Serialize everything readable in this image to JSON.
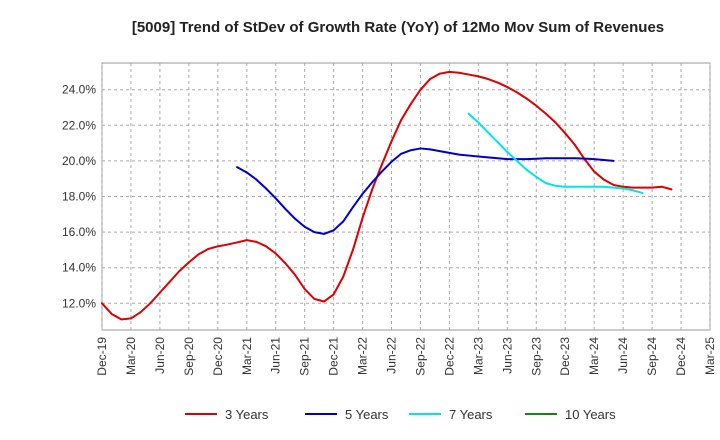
{
  "chart_data": {
    "type": "line",
    "title": "[5009]  Trend of StDev of Growth Rate (YoY) of 12Mo Mov Sum of Revenues",
    "xlabel": "",
    "ylabel": "",
    "ylim": [
      10.5,
      25.5
    ],
    "y_ticks": [
      {
        "value": 12,
        "label": "12.0%"
      },
      {
        "value": 14,
        "label": "14.0%"
      },
      {
        "value": 16,
        "label": "16.0%"
      },
      {
        "value": 18,
        "label": "18.0%"
      },
      {
        "value": 20,
        "label": "20.0%"
      },
      {
        "value": 22,
        "label": "22.0%"
      },
      {
        "value": 24,
        "label": "24.0%"
      }
    ],
    "x_ticks": [
      {
        "index": 0,
        "label": "Dec-19"
      },
      {
        "index": 3,
        "label": "Mar-20"
      },
      {
        "index": 6,
        "label": "Jun-20"
      },
      {
        "index": 9,
        "label": "Sep-20"
      },
      {
        "index": 12,
        "label": "Dec-20"
      },
      {
        "index": 15,
        "label": "Mar-21"
      },
      {
        "index": 18,
        "label": "Jun-21"
      },
      {
        "index": 21,
        "label": "Sep-21"
      },
      {
        "index": 24,
        "label": "Dec-21"
      },
      {
        "index": 27,
        "label": "Mar-22"
      },
      {
        "index": 30,
        "label": "Jun-22"
      },
      {
        "index": 33,
        "label": "Sep-22"
      },
      {
        "index": 36,
        "label": "Dec-22"
      },
      {
        "index": 39,
        "label": "Mar-23"
      },
      {
        "index": 42,
        "label": "Jun-23"
      },
      {
        "index": 45,
        "label": "Sep-23"
      },
      {
        "index": 48,
        "label": "Dec-23"
      },
      {
        "index": 51,
        "label": "Mar-24"
      },
      {
        "index": 54,
        "label": "Jun-24"
      },
      {
        "index": 57,
        "label": "Sep-24"
      },
      {
        "index": 60,
        "label": "Dec-24"
      },
      {
        "index": 63,
        "label": "Mar-25"
      }
    ],
    "x_range": [
      0,
      63
    ],
    "grid": true,
    "legend_position": "bottom",
    "series": [
      {
        "name": "3 Years",
        "color": "#dd0000",
        "start_index": 0,
        "values": [
          12.0,
          11.4,
          11.1,
          11.15,
          11.5,
          12.0,
          12.6,
          13.2,
          13.8,
          14.3,
          14.75,
          15.05,
          15.2,
          15.3,
          15.42,
          15.55,
          15.45,
          15.2,
          14.8,
          14.25,
          13.6,
          12.8,
          12.25,
          12.1,
          12.5,
          13.5,
          15.0,
          16.8,
          18.4,
          19.8,
          21.1,
          22.3,
          23.2,
          24.0,
          24.6,
          24.9,
          25.0,
          24.95,
          24.85,
          24.75,
          24.6,
          24.4,
          24.15,
          23.85,
          23.5,
          23.1,
          22.65,
          22.15,
          21.55,
          20.9,
          20.1,
          19.4,
          18.95,
          18.65,
          18.55,
          18.5,
          18.5,
          18.5,
          18.55,
          18.4
        ]
      },
      {
        "name": "5 Years",
        "color": "#0000cc",
        "start_index": 14,
        "values": [
          19.65,
          19.35,
          18.95,
          18.45,
          17.9,
          17.3,
          16.75,
          16.3,
          16.0,
          15.9,
          16.1,
          16.6,
          17.4,
          18.15,
          18.8,
          19.4,
          19.95,
          20.4,
          20.6,
          20.7,
          20.65,
          20.55,
          20.45,
          20.35,
          20.3,
          20.25,
          20.2,
          20.15,
          20.1,
          20.1,
          20.1,
          20.12,
          20.15,
          20.15,
          20.15,
          20.15,
          20.13,
          20.1,
          20.05,
          20.0
        ]
      },
      {
        "name": "7 Years",
        "color": "#00e5e5",
        "start_index": 38,
        "values": [
          22.65,
          22.15,
          21.6,
          21.05,
          20.5,
          20.0,
          19.5,
          19.1,
          18.75,
          18.6,
          18.55,
          18.55,
          18.55,
          18.55,
          18.55,
          18.5,
          18.45,
          18.35,
          18.2
        ]
      },
      {
        "name": "10 Years",
        "color": "#118811",
        "start_index": 0,
        "values": []
      }
    ]
  }
}
